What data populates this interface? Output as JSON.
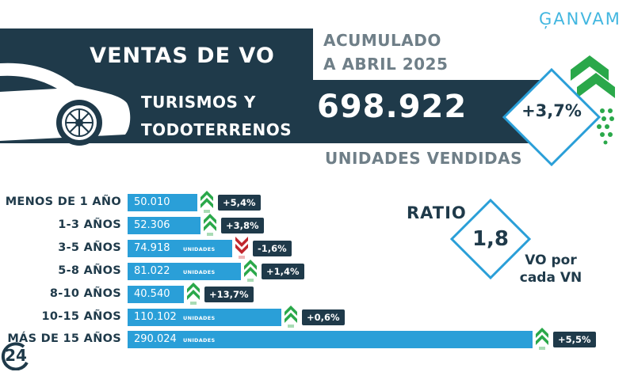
{
  "brand": "ĢANVAM",
  "header": {
    "title": "VENTAS DE VO",
    "subtitle_line1": "ACUMULADO",
    "subtitle_line2": "A ABRIL 2025",
    "vehicle_line1": "TURISMOS Y",
    "vehicle_line2": "TODOTERRENOS",
    "total": "698.922",
    "units_label": "UNIDADES VENDIDAS",
    "change": "+3,7%"
  },
  "ratio": {
    "label": "RATIO",
    "value": "1,8",
    "desc_line1": "VO por",
    "desc_line2": "cada VN"
  },
  "corner_logo": "24",
  "colors": {
    "navy": "#1f3a4a",
    "bar": "#2a9fd8",
    "up": "#2aa84a",
    "down": "#c0262d",
    "accent": "#43b7e0",
    "grey": "#6f7f88"
  },
  "chart_data": {
    "type": "bar",
    "orientation": "horizontal",
    "categories": [
      "MENOS DE 1 AÑO",
      "1-3 AÑOS",
      "3-5 AÑOS",
      "5-8 AÑOS",
      "8-10 AÑOS",
      "10-15 AÑOS",
      "MÁS DE 15 AÑOS"
    ],
    "values": [
      50010,
      52306,
      74918,
      81022,
      40540,
      110102,
      290024
    ],
    "value_labels": [
      "50.010",
      "52.306",
      "74.918",
      "81.022",
      "40.540",
      "110.102",
      "290.024"
    ],
    "unit_label": "UNIDADES",
    "changes": [
      "+5,4%",
      "+3,8%",
      "-1,6%",
      "+1,4%",
      "+13,7%",
      "+0,6%",
      "+5,5%"
    ],
    "directions": [
      "up",
      "up",
      "down",
      "up",
      "up",
      "up",
      "up"
    ],
    "xlim": [
      0,
      290024
    ]
  }
}
